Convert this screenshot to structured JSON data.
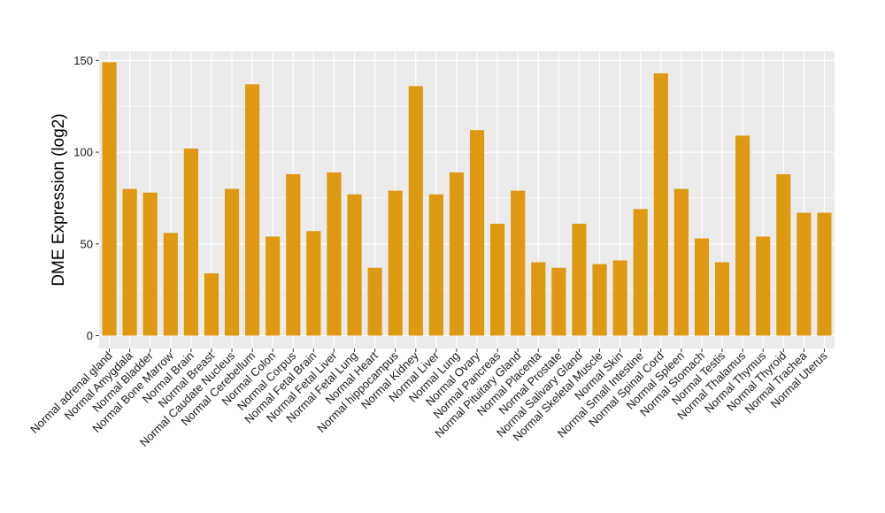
{
  "chart_data": {
    "type": "bar",
    "title": "",
    "xlabel": "",
    "ylabel": "DME Expression (log2)",
    "ylim": [
      -7,
      155
    ],
    "yticks": [
      0,
      50,
      100,
      150
    ],
    "grid": true,
    "legend": "none",
    "bar_color": "#de9812",
    "panel_color": "#ebebeb",
    "categories": [
      "Normal adrenal gland",
      "Normal Amygdala",
      "Normal Bladder",
      "Normal Bone Marrow",
      "Normal Brain",
      "Normal Breast",
      "Normal Caudate Nucleus",
      "Normal Cerebellum",
      "Normal Colon",
      "Normal Corpus",
      "Normal Fetal Brain",
      "Normal Fetal Liver",
      "Normal Fetal Lung",
      "Normal Heart",
      "Normal hippocampus",
      "Normal Kidney",
      "Normal Liver",
      "Normal Lung",
      "Normal Ovary",
      "Normal Pancreas",
      "Normal Pituitary Gland",
      "Normal Placenta",
      "Normal Prostate",
      "Normal Salivary Gland",
      "Normal Skeletal Muscle",
      "Normal Skin",
      "Normal Small Intestine",
      "Normal Spinal Cord",
      "Normal Spleen",
      "Normal Stomach",
      "Normal Testis",
      "Normal Thalamus",
      "Normal Thymus",
      "Normal Thyroid",
      "Normal Trachea",
      "Normal Uterus"
    ],
    "values": [
      149,
      80,
      78,
      56,
      102,
      34,
      80,
      137,
      54,
      88,
      57,
      89,
      77,
      37,
      79,
      136,
      77,
      89,
      112,
      61,
      79,
      40,
      37,
      61,
      39,
      41,
      69,
      143,
      80,
      53,
      40,
      109,
      54,
      88,
      67,
      67
    ]
  }
}
